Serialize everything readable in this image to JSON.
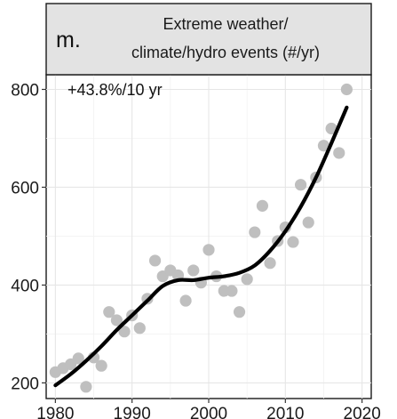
{
  "chart_data": {
    "type": "scatter",
    "panel_label": "m.",
    "title": [
      "Extreme weather/",
      "climate/hydro events (#/yr)"
    ],
    "annotation": "+43.8%/10 yr",
    "xlabel": "",
    "ylabel": "",
    "xlim": [
      1978.8,
      2021.2
    ],
    "ylim": [
      168,
      830
    ],
    "x_ticks": [
      1980,
      1990,
      2000,
      2010,
      2020
    ],
    "y_ticks": [
      200,
      400,
      600,
      800
    ],
    "grid": true,
    "colors": {
      "points": "#bfbfbf",
      "trend": "#000000",
      "strip": "#e3e3e3"
    },
    "series": [
      {
        "kind": "points",
        "x": [
          1980,
          1981,
          1982,
          1983,
          1984,
          1985,
          1986,
          1987,
          1988,
          1989,
          1990,
          1991,
          1992,
          1993,
          1994,
          1995,
          1996,
          1997,
          1998,
          1999,
          2000,
          2001,
          2002,
          2003,
          2004,
          2005,
          2006,
          2007,
          2008,
          2009,
          2010,
          2011,
          2012,
          2013,
          2014,
          2015,
          2016,
          2017,
          2018
        ],
        "y": [
          222,
          230,
          238,
          250,
          192,
          252,
          235,
          345,
          328,
          305,
          338,
          312,
          372,
          450,
          418,
          430,
          420,
          368,
          430,
          405,
          472,
          418,
          388,
          388,
          345,
          412,
          508,
          562,
          445,
          490,
          518,
          488,
          605,
          528,
          620,
          685,
          720,
          670,
          800
        ]
      },
      {
        "kind": "trend",
        "x": [
          1980,
          1982,
          1984,
          1986,
          1988,
          1990,
          1992,
          1994,
          1996,
          1998,
          2000,
          2002,
          2004,
          2006,
          2008,
          2010,
          2012,
          2014,
          2016,
          2018
        ],
        "y": [
          195,
          218,
          245,
          275,
          308,
          338,
          368,
          398,
          410,
          410,
          415,
          418,
          425,
          440,
          470,
          510,
          560,
          620,
          690,
          763
        ]
      }
    ]
  }
}
